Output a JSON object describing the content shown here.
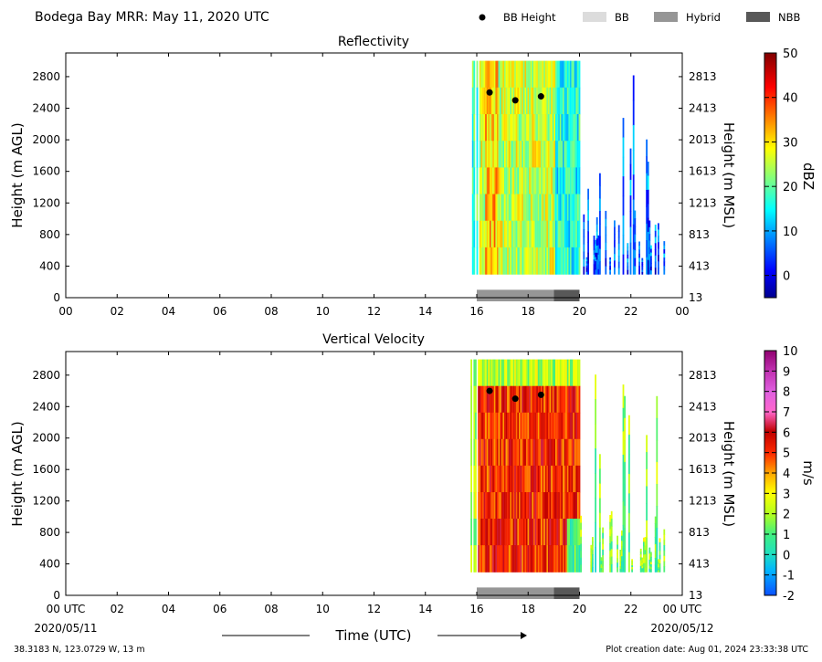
{
  "header": {
    "title": "Bodega Bay MRR:  May 11, 2020 UTC",
    "legend": [
      {
        "label": "BB Height",
        "kind": "dot",
        "color": "#000000"
      },
      {
        "label": "BB",
        "kind": "box",
        "color": "#dcdcdc"
      },
      {
        "label": "Hybrid",
        "kind": "box",
        "color": "#969696"
      },
      {
        "label": "NBB",
        "kind": "box",
        "color": "#585858"
      }
    ]
  },
  "footer": {
    "location": "38.3183 N, 123.0729 W, 13 m",
    "creation": "Plot creation date: Aug 01, 2024 23:33:38 UTC",
    "time_label": "Time (UTC)",
    "start_date": "2020/05/11",
    "end_date": "2020/05/12"
  },
  "chart_data": [
    {
      "type": "heatmap",
      "title": "Reflectivity",
      "ylabel": "Height (m AGL)",
      "ylabel_right": "Height (m MSL)",
      "x_ticks": [
        "00",
        "02",
        "04",
        "06",
        "08",
        "10",
        "12",
        "14",
        "16",
        "18",
        "20",
        "22",
        "00"
      ],
      "xlim": [
        0,
        24
      ],
      "ylim": [
        0,
        3100
      ],
      "y_ticks": [
        0,
        400,
        800,
        1200,
        1600,
        2000,
        2400,
        2800
      ],
      "y_ticks_right": [
        "13",
        "413",
        "813",
        "1213",
        "1613",
        "2013",
        "2413",
        "2813"
      ],
      "data_extent": {
        "start": 15.7,
        "end": 23.3,
        "bottom": 300,
        "top": 3000
      },
      "colorbar": {
        "label": "dBZ",
        "min": -5,
        "max": 50,
        "ticks": [
          0,
          10,
          20,
          30,
          40,
          50
        ]
      },
      "bb_height": [
        {
          "time": 16.5,
          "height": 2600
        },
        {
          "time": 17.5,
          "height": 2500
        },
        {
          "time": 18.5,
          "height": 2550
        }
      ],
      "bb_type": [
        {
          "start": 16.0,
          "end": 19.0,
          "type": "Hybrid"
        },
        {
          "start": 19.0,
          "end": 20.0,
          "type": "NBB"
        }
      ]
    },
    {
      "type": "heatmap",
      "title": "Vertical Velocity",
      "ylabel": "Height (m AGL)",
      "ylabel_right": "Height (m MSL)",
      "x_ticks": [
        "00 UTC",
        "02",
        "04",
        "06",
        "08",
        "10",
        "12",
        "14",
        "16",
        "18",
        "20",
        "22",
        "00 UTC"
      ],
      "xlim": [
        0,
        24
      ],
      "ylim": [
        0,
        3100
      ],
      "y_ticks": [
        0,
        400,
        800,
        1200,
        1600,
        2000,
        2400,
        2800
      ],
      "y_ticks_right": [
        "13",
        "413",
        "813",
        "1213",
        "1613",
        "2013",
        "2413",
        "2813"
      ],
      "data_extent": {
        "start": 15.7,
        "end": 23.3,
        "bottom": 300,
        "top": 3000
      },
      "colorbar": {
        "label": "m/s",
        "min": -2,
        "max": 10,
        "ticks": [
          -2,
          -1,
          0,
          1,
          2,
          3,
          4,
          5,
          6,
          7,
          8,
          9,
          10
        ]
      },
      "bb_height": [
        {
          "time": 16.5,
          "height": 2600
        },
        {
          "time": 17.5,
          "height": 2500
        },
        {
          "time": 18.5,
          "height": 2550
        }
      ],
      "bb_type": [
        {
          "start": 16.0,
          "end": 19.0,
          "type": "Hybrid"
        },
        {
          "start": 19.0,
          "end": 20.0,
          "type": "NBB"
        }
      ]
    }
  ]
}
